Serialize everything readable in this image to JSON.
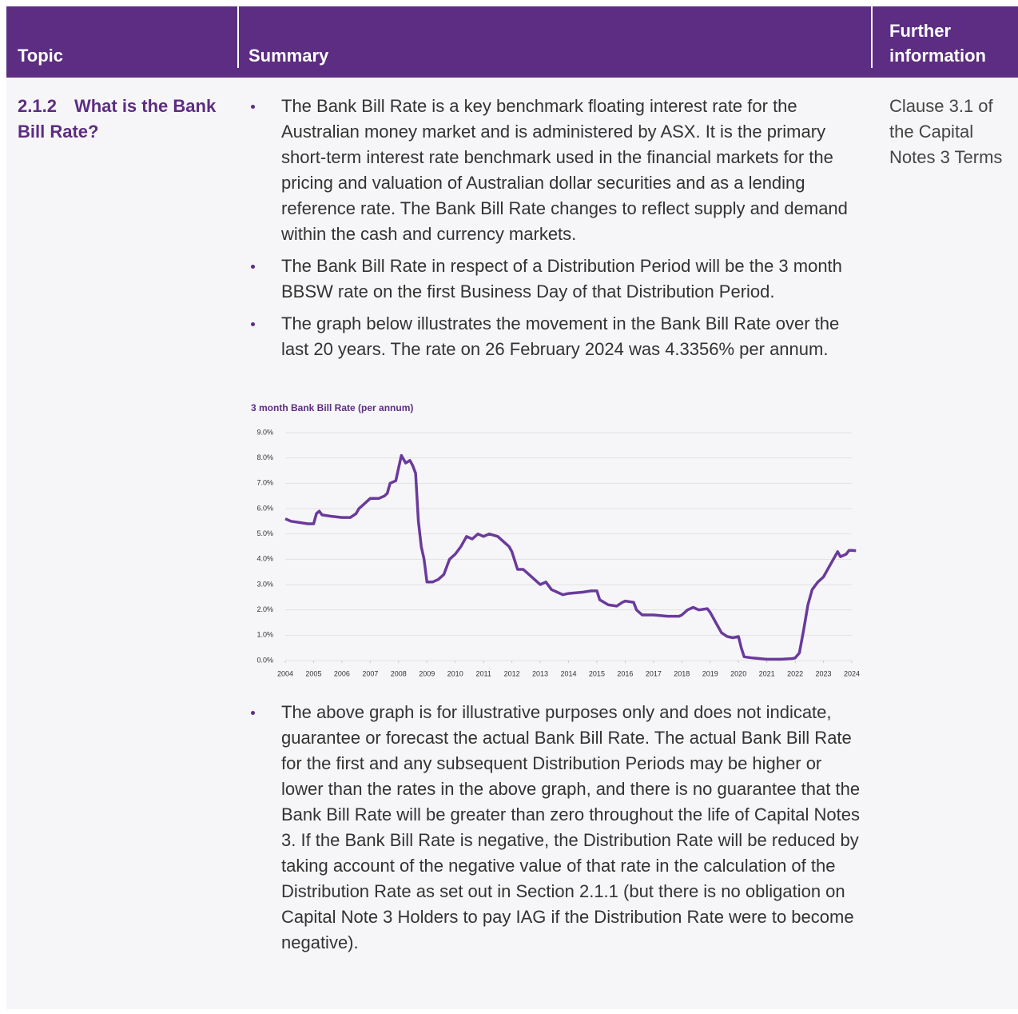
{
  "header": {
    "topic": "Topic",
    "summary": "Summary",
    "further": "Further information"
  },
  "row": {
    "number": "2.1.2",
    "topic": "What is the Bank Bill Rate?",
    "bullets": [
      "The Bank Bill Rate is a key benchmark floating interest rate for the Australian money market and is administered by ASX. It is the primary short-term interest rate benchmark used in the financial markets for the pricing and valuation of Australian dollar securities and as a lending reference rate. The Bank Bill Rate changes to reflect supply and demand within the cash and currency markets.",
      "The Bank Bill Rate in respect of a Distribution Period will be the 3 month BBSW rate on the first Business Day of that Distribution Period.",
      "The graph below illustrates the movement in the Bank Bill Rate over the last 20 years. The rate on 26 February 2024 was 4.3356% per annum."
    ],
    "bullets_after": [
      "The above graph is for illustrative purposes only and does not indicate, guarantee or forecast the actual Bank Bill Rate. The actual Bank Bill Rate for the first and any subsequent Distribution Periods may be higher or lower than the rates in the above graph, and there is no guarantee that the Bank Bill Rate will be greater than zero throughout the life of Capital Notes 3. If the Bank Bill Rate is negative, the Distribution Rate will be reduced by taking account of the negative value of that rate in the calculation of the Distribution Rate as set out in Section 2.1.1 (but there is no obligation on Capital Note 3 Holders to pay IAG if the Distribution Rate were to become negative)."
    ],
    "further": "Clause 3.1 of the Capital Notes 3 Terms"
  },
  "chart_data": {
    "type": "line",
    "title": "3 month Bank Bill Rate (per annum)",
    "color": "#6a3a9c",
    "grid": true,
    "xlim": [
      2004,
      2024
    ],
    "xticks": [
      2004,
      2005,
      2006,
      2007,
      2008,
      2009,
      2010,
      2011,
      2012,
      2013,
      2014,
      2015,
      2016,
      2017,
      2018,
      2019,
      2020,
      2021,
      2022,
      2023,
      2024
    ],
    "ylim": [
      0,
      9
    ],
    "yticks": [
      {
        "value": 0,
        "label": "0.0%"
      },
      {
        "value": 1,
        "label": "1.0%"
      },
      {
        "value": 2,
        "label": "2.0%"
      },
      {
        "value": 3,
        "label": "3.0%"
      },
      {
        "value": 4,
        "label": "4.0%"
      },
      {
        "value": 5,
        "label": "5.0%"
      },
      {
        "value": 6,
        "label": "6.0%"
      },
      {
        "value": 7,
        "label": "7.0%"
      },
      {
        "value": 8,
        "label": "8.0%"
      },
      {
        "value": 9,
        "label": "9.0%"
      }
    ],
    "x": [
      2004.0,
      2004.2,
      2004.5,
      2004.8,
      2005.0,
      2005.1,
      2005.2,
      2005.3,
      2005.6,
      2006.0,
      2006.3,
      2006.5,
      2006.6,
      2006.8,
      2007.0,
      2007.3,
      2007.5,
      2007.6,
      2007.7,
      2007.9,
      2008.0,
      2008.1,
      2008.25,
      2008.4,
      2008.5,
      2008.6,
      2008.7,
      2008.8,
      2008.9,
      2009.0,
      2009.2,
      2009.4,
      2009.6,
      2009.8,
      2010.0,
      2010.2,
      2010.4,
      2010.6,
      2010.8,
      2011.0,
      2011.2,
      2011.5,
      2011.7,
      2011.9,
      2012.0,
      2012.2,
      2012.4,
      2012.6,
      2012.8,
      2013.0,
      2013.2,
      2013.4,
      2013.6,
      2013.8,
      2014.0,
      2014.5,
      2014.8,
      2015.0,
      2015.1,
      2015.4,
      2015.7,
      2015.9,
      2016.0,
      2016.3,
      2016.4,
      2016.6,
      2017.0,
      2017.5,
      2017.9,
      2018.0,
      2018.2,
      2018.4,
      2018.6,
      2018.9,
      2019.0,
      2019.2,
      2019.4,
      2019.6,
      2019.8,
      2020.0,
      2020.1,
      2020.2,
      2020.5,
      2021.0,
      2021.5,
      2021.9,
      2022.0,
      2022.15,
      2022.3,
      2022.45,
      2022.6,
      2022.8,
      2023.0,
      2023.2,
      2023.4,
      2023.5,
      2023.6,
      2023.8,
      2023.9,
      2024.0,
      2024.15
    ],
    "values": [
      5.6,
      5.5,
      5.45,
      5.4,
      5.4,
      5.8,
      5.9,
      5.75,
      5.7,
      5.65,
      5.65,
      5.8,
      6.0,
      6.2,
      6.4,
      6.4,
      6.5,
      6.6,
      7.0,
      7.1,
      7.6,
      8.1,
      7.8,
      7.9,
      7.7,
      7.4,
      5.5,
      4.5,
      4.0,
      3.1,
      3.1,
      3.2,
      3.4,
      4.0,
      4.2,
      4.5,
      4.9,
      4.8,
      5.0,
      4.9,
      5.0,
      4.9,
      4.7,
      4.5,
      4.3,
      3.6,
      3.6,
      3.4,
      3.2,
      3.0,
      3.1,
      2.8,
      2.7,
      2.6,
      2.65,
      2.7,
      2.75,
      2.75,
      2.4,
      2.2,
      2.15,
      2.3,
      2.35,
      2.3,
      2.0,
      1.8,
      1.8,
      1.75,
      1.75,
      1.8,
      2.0,
      2.1,
      2.0,
      2.05,
      1.9,
      1.5,
      1.1,
      0.95,
      0.9,
      0.95,
      0.5,
      0.15,
      0.1,
      0.05,
      0.05,
      0.08,
      0.1,
      0.3,
      1.2,
      2.2,
      2.8,
      3.1,
      3.3,
      3.7,
      4.1,
      4.3,
      4.1,
      4.2,
      4.35,
      4.35,
      4.34
    ]
  }
}
